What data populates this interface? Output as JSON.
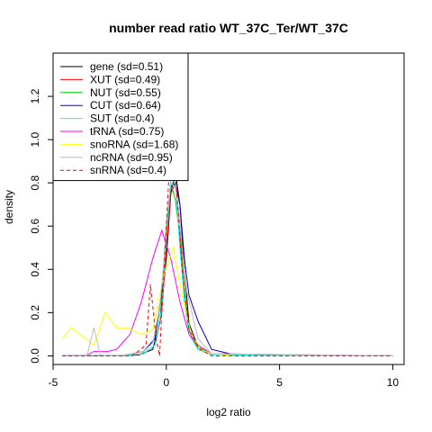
{
  "chart_data": {
    "type": "line",
    "title": "number read ratio WT_37C_Ter/WT_37C",
    "xlabel": "log2 ratio",
    "ylabel": "density",
    "xlim": [
      -5.0,
      10.5
    ],
    "ylim": [
      -0.04,
      1.4
    ],
    "x_ticks": [
      -5,
      0,
      5,
      10
    ],
    "x_tick_labels": [
      "-5",
      "0",
      "5",
      "10"
    ],
    "y_ticks": [
      0.0,
      0.2,
      0.4,
      0.6,
      0.8,
      1.0,
      1.2
    ],
    "y_tick_labels": [
      "0.0",
      "0.2",
      "0.4",
      "0.6",
      "0.8",
      "1.0",
      "1.2"
    ],
    "grid": false,
    "legend_position": "top-left",
    "series": [
      {
        "name": "gene (sd=0.51)",
        "color": "#000000",
        "dash": "solid",
        "x": [
          -4.6,
          -3.0,
          -2.0,
          -1.2,
          -0.6,
          -0.3,
          0.0,
          0.2,
          0.4,
          0.6,
          0.8,
          1.0,
          1.4,
          2.0,
          3.0,
          5.0,
          10.0
        ],
        "y": [
          0,
          0,
          0,
          0.005,
          0.03,
          0.15,
          0.45,
          0.75,
          0.85,
          0.7,
          0.4,
          0.15,
          0.04,
          0.01,
          0.003,
          0,
          0
        ]
      },
      {
        "name": "XUT (sd=0.49)",
        "color": "#ff0000",
        "dash": "solid",
        "x": [
          -4.6,
          -2.0,
          -1.0,
          -0.5,
          -0.2,
          0.0,
          0.2,
          0.4,
          0.6,
          0.8,
          1.0,
          1.4,
          2.0,
          3.0,
          10.0
        ],
        "y": [
          0,
          0,
          0.01,
          0.05,
          0.2,
          0.5,
          0.75,
          0.8,
          0.6,
          0.3,
          0.12,
          0.03,
          0.01,
          0,
          0
        ]
      },
      {
        "name": "NUT (sd=0.55)",
        "color": "#00cd00",
        "dash": "solid",
        "x": [
          -4.6,
          -2.0,
          -1.0,
          -0.5,
          -0.2,
          0.0,
          0.2,
          0.4,
          0.6,
          0.8,
          1.0,
          1.4,
          2.0,
          3.0,
          10.0
        ],
        "y": [
          0,
          0,
          0.02,
          0.08,
          0.28,
          0.6,
          0.8,
          0.72,
          0.55,
          0.3,
          0.12,
          0.04,
          0.01,
          0,
          0
        ]
      },
      {
        "name": "CUT (sd=0.64)",
        "color": "#0000cd",
        "dash": "solid",
        "x": [
          -4.6,
          -2.0,
          -1.0,
          -0.5,
          -0.2,
          0.0,
          0.2,
          0.4,
          0.6,
          0.8,
          1.0,
          1.4,
          2.0,
          3.0,
          10.0
        ],
        "y": [
          0,
          0,
          0.02,
          0.08,
          0.3,
          0.55,
          0.78,
          0.8,
          0.7,
          0.45,
          0.28,
          0.16,
          0.03,
          0.005,
          0
        ]
      },
      {
        "name": "SUT (sd=0.4)",
        "color": "#00ffff",
        "dash": "solid",
        "x": [
          -4.6,
          -2.0,
          -1.0,
          -0.5,
          -0.2,
          0.0,
          0.2,
          0.4,
          0.6,
          0.8,
          1.0,
          1.4,
          2.0,
          10.0
        ],
        "y": [
          0,
          0,
          0.01,
          0.05,
          0.22,
          0.55,
          0.82,
          0.8,
          0.5,
          0.25,
          0.1,
          0.03,
          0.005,
          0
        ]
      },
      {
        "name": "tRNA (sd=0.75)",
        "color": "#ff00ff",
        "dash": "solid",
        "x": [
          -4.6,
          -3.6,
          -3.2,
          -2.6,
          -2.2,
          -1.6,
          -1.1,
          -0.6,
          -0.2,
          0.2,
          0.6,
          1.0,
          1.4,
          2.0,
          10.0
        ],
        "y": [
          0,
          0,
          0.02,
          0.02,
          0.03,
          0.1,
          0.25,
          0.45,
          0.58,
          0.45,
          0.25,
          0.1,
          0.05,
          0.01,
          0
        ]
      },
      {
        "name": "snoRNA (sd=1.68)",
        "color": "#ffff00",
        "dash": "solid",
        "x": [
          -4.6,
          -4.2,
          -3.7,
          -3.2,
          -2.7,
          -2.2,
          -1.7,
          -1.1,
          -0.6,
          -0.1,
          0.3,
          0.7,
          1.1,
          1.5,
          2.0,
          3.0,
          10.0
        ],
        "y": [
          0.08,
          0.13,
          0.09,
          0.05,
          0.2,
          0.13,
          0.13,
          0.1,
          0.12,
          0.38,
          0.5,
          0.28,
          0.1,
          0.03,
          0.01,
          0,
          0
        ]
      },
      {
        "name": "ncRNA (sd=0.95)",
        "color": "#bebebe",
        "dash": "solid",
        "x": [
          -4.6,
          -3.5,
          -3.2,
          -2.9,
          -2.0,
          -1.0,
          -0.6,
          -0.3,
          0.0,
          0.2,
          0.4,
          0.6,
          0.9,
          1.4,
          2.0,
          10.0
        ],
        "y": [
          0,
          0,
          0.13,
          0,
          0,
          0.02,
          0.06,
          0.22,
          0.55,
          0.8,
          0.78,
          0.6,
          0.3,
          0.08,
          0.01,
          0
        ]
      },
      {
        "name": "snRNA (sd=0.4)",
        "color": "#ff0000",
        "dash": "dashed",
        "x": [
          -4.6,
          -1.5,
          -0.9,
          -0.7,
          -0.45,
          -0.3,
          -0.15,
          0.1,
          0.4,
          0.7,
          1.0,
          1.5,
          2.0,
          10.0
        ],
        "y": [
          0,
          0,
          0.05,
          0.33,
          0.08,
          0,
          0.3,
          0.8,
          0.85,
          0.4,
          0.12,
          0.03,
          0,
          0
        ]
      }
    ]
  }
}
